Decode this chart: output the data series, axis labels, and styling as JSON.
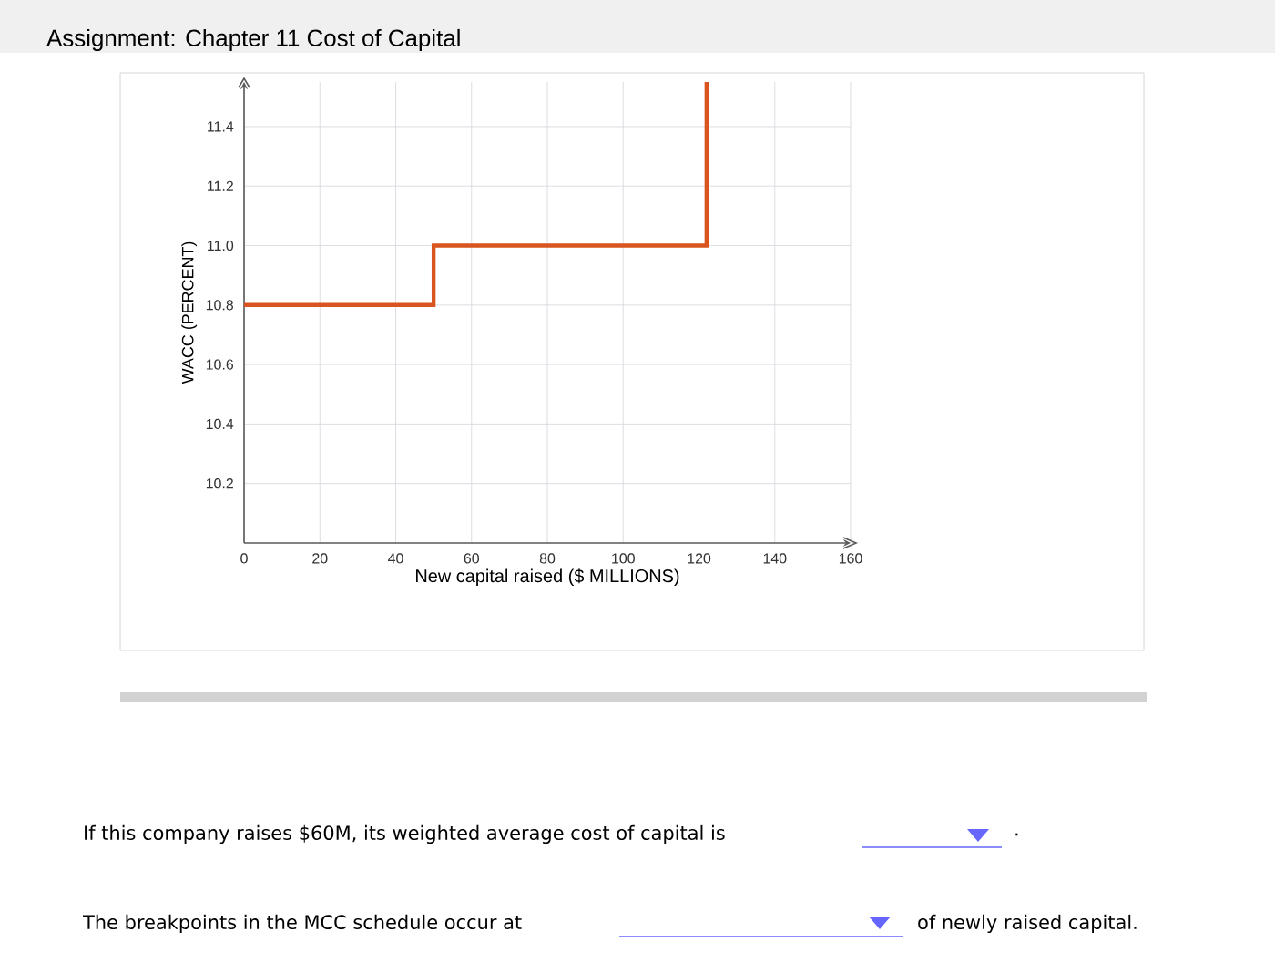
{
  "chart_data": {
    "type": "step",
    "title": "Assignment: Chapter 11 Cost of Capital",
    "xlabel": "New capital raised ($ MILLIONS)",
    "ylabel": "WACC (PERCENT)",
    "x": [
      0,
      50,
      122
    ],
    "values": [
      10.8,
      11.0,
      11.55
    ],
    "color": "#d9541e",
    "xlim": [
      0,
      160
    ],
    "xticks": [
      0,
      20,
      40,
      60,
      80,
      100,
      120,
      140,
      160
    ],
    "ylim": [
      10.0,
      11.55
    ],
    "yticks": [
      10.2,
      10.4,
      10.6,
      10.8,
      {
        "value": 11.0,
        "label": "11.0"
      },
      11.2,
      11.4
    ],
    "grid": true,
    "annotations": [
      "If this company raises $60M, its weighted average cost of capital is",
      ".",
      "The breakpoints in the MCC schedule occur at",
      "of newly raised capital."
    ]
  }
}
